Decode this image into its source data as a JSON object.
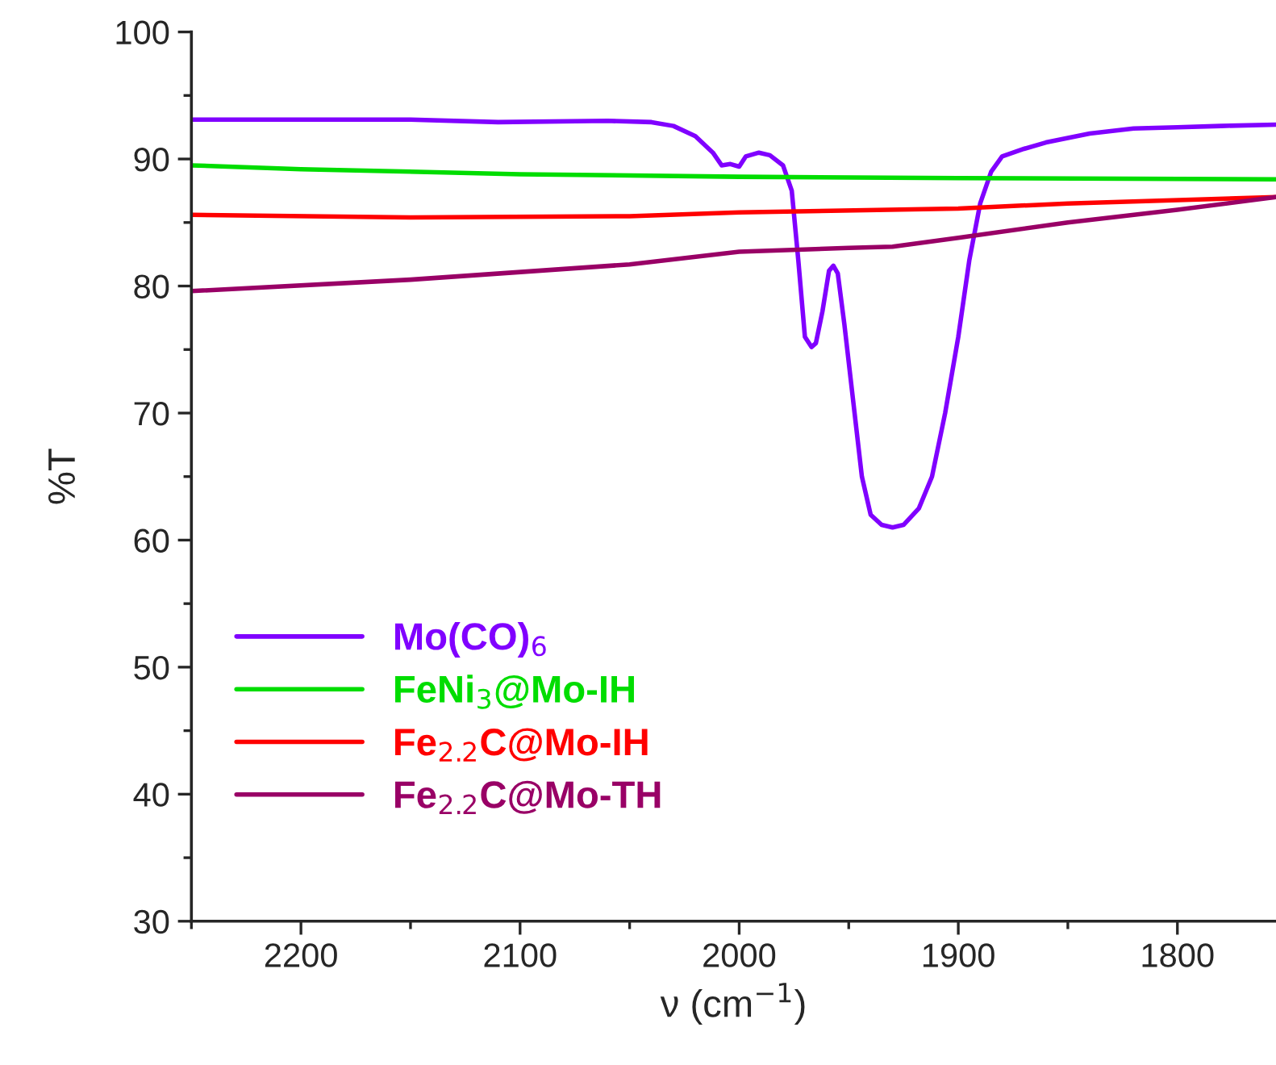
{
  "chart_data": {
    "type": "line",
    "xlabel": "ν (cm$^{−1}$)",
    "ylabel": "%T",
    "xlim": [
      2250,
      1755
    ],
    "ylim": [
      30,
      100
    ],
    "xticks": [
      {
        "value": 2250,
        "label": null
      },
      2200,
      {
        "value": 2150,
        "label": null
      },
      2100,
      {
        "value": 2050,
        "label": null
      },
      2000,
      {
        "value": 1950,
        "label": null
      },
      1900,
      {
        "value": 1850,
        "label": null
      },
      1800
    ],
    "yticks": [
      30,
      {
        "value": 35,
        "label": null
      },
      40,
      {
        "value": 45,
        "label": null
      },
      50,
      {
        "value": 55,
        "label": null
      },
      60,
      {
        "value": 65,
        "label": null
      },
      70,
      {
        "value": 75,
        "label": null
      },
      80,
      {
        "value": 85,
        "label": null
      },
      90,
      {
        "value": 95,
        "label": null
      },
      100
    ],
    "grid": false,
    "legend": "bottom left",
    "marker": "none",
    "line_style": "solid",
    "series": [
      {
        "name": "Mo(CO)$_{6}$",
        "color": "#8000ff",
        "x": [
          2250,
          2200,
          2150,
          2110,
          2060,
          2040,
          2030,
          2020,
          2012,
          2008,
          2004,
          2000,
          1997,
          1991,
          1986,
          1980,
          1976,
          1973,
          1970,
          1967,
          1965,
          1962,
          1959,
          1957,
          1955,
          1952,
          1948,
          1944,
          1940,
          1935,
          1930,
          1925,
          1918,
          1912,
          1906,
          1900,
          1895,
          1890,
          1885,
          1880,
          1870,
          1860,
          1840,
          1820,
          1800,
          1780,
          1755
        ],
        "values": [
          93.1,
          93.1,
          93.1,
          92.9,
          93.0,
          92.9,
          92.6,
          91.8,
          90.5,
          89.5,
          89.6,
          89.4,
          90.2,
          90.5,
          90.3,
          89.5,
          87.5,
          82,
          76,
          75.2,
          75.5,
          78,
          81.2,
          81.6,
          81,
          77,
          71,
          65,
          62,
          61.2,
          61,
          61.2,
          62.5,
          65,
          70,
          76,
          82,
          86.5,
          89,
          90.2,
          90.8,
          91.3,
          92,
          92.4,
          92.5,
          92.6,
          92.7
        ]
      },
      {
        "name": "FeNi$_{3}$@Mo-IH",
        "color": "#00dd00",
        "x": [
          2250,
          2200,
          2100,
          2000,
          1900,
          1755
        ],
        "values": [
          89.5,
          89.2,
          88.8,
          88.6,
          88.5,
          88.4
        ]
      },
      {
        "name": "Fe$_{2.2}$C@Mo-IH",
        "color": "#ff0000",
        "x": [
          2250,
          2150,
          2050,
          2000,
          1900,
          1850,
          1755
        ],
        "values": [
          85.6,
          85.4,
          85.5,
          85.8,
          86.1,
          86.5,
          87
        ]
      },
      {
        "name": "Fe$_{2.2}$C@Mo-TH",
        "color": "#990066",
        "x": [
          2250,
          2150,
          2050,
          2000,
          1950,
          1930,
          1900,
          1850,
          1800,
          1755
        ],
        "values": [
          79.6,
          80.5,
          81.7,
          82.7,
          83,
          83.1,
          83.8,
          85,
          86,
          87
        ]
      }
    ]
  }
}
